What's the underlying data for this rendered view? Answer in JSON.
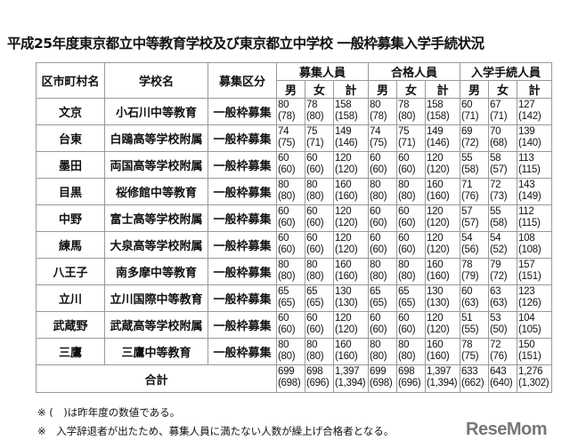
{
  "title": "平成25年度東京都立中等教育学校及び東京都立中学校 一般枠募集入学手続状況",
  "headers": {
    "district": "区市町村名",
    "school": "学校名",
    "category": "募集区分",
    "groups": [
      "募集人員",
      "合格人員",
      "入学手続人員"
    ],
    "sub": [
      "男",
      "女",
      "計"
    ]
  },
  "rows": [
    {
      "district": "文京",
      "school": "小石川中等教育",
      "category": "一般枠募集",
      "values": [
        [
          "80",
          "(78)"
        ],
        [
          "78",
          "(80)"
        ],
        [
          "158",
          "(158)"
        ],
        [
          "80",
          "(78)"
        ],
        [
          "78",
          "(80)"
        ],
        [
          "158",
          "(158)"
        ],
        [
          "60",
          "(71)"
        ],
        [
          "67",
          "(71)"
        ],
        [
          "127",
          "(142)"
        ]
      ]
    },
    {
      "district": "台東",
      "school": "白鴎高等学校附属",
      "category": "一般枠募集",
      "values": [
        [
          "74",
          "(75)"
        ],
        [
          "75",
          "(71)"
        ],
        [
          "149",
          "(146)"
        ],
        [
          "74",
          "(75)"
        ],
        [
          "75",
          "(71)"
        ],
        [
          "149",
          "(146)"
        ],
        [
          "69",
          "(72)"
        ],
        [
          "70",
          "(68)"
        ],
        [
          "139",
          "(140)"
        ]
      ]
    },
    {
      "district": "墨田",
      "school": "両国高等学校附属",
      "category": "一般枠募集",
      "values": [
        [
          "60",
          "(60)"
        ],
        [
          "60",
          "(60)"
        ],
        [
          "120",
          "(120)"
        ],
        [
          "60",
          "(60)"
        ],
        [
          "60",
          "(60)"
        ],
        [
          "120",
          "(120)"
        ],
        [
          "55",
          "(58)"
        ],
        [
          "58",
          "(57)"
        ],
        [
          "113",
          "(115)"
        ]
      ]
    },
    {
      "district": "目黒",
      "school": "桜修館中等教育",
      "category": "一般枠募集",
      "values": [
        [
          "80",
          "(80)"
        ],
        [
          "80",
          "(80)"
        ],
        [
          "160",
          "(160)"
        ],
        [
          "80",
          "(80)"
        ],
        [
          "80",
          "(80)"
        ],
        [
          "160",
          "(160)"
        ],
        [
          "71",
          "(76)"
        ],
        [
          "72",
          "(73)"
        ],
        [
          "143",
          "(149)"
        ]
      ]
    },
    {
      "district": "中野",
      "school": "富士高等学校附属",
      "category": "一般枠募集",
      "values": [
        [
          "60",
          "(60)"
        ],
        [
          "60",
          "(60)"
        ],
        [
          "120",
          "(120)"
        ],
        [
          "60",
          "(60)"
        ],
        [
          "60",
          "(60)"
        ],
        [
          "120",
          "(120)"
        ],
        [
          "57",
          "(57)"
        ],
        [
          "55",
          "(58)"
        ],
        [
          "112",
          "(115)"
        ]
      ]
    },
    {
      "district": "練馬",
      "school": "大泉高等学校附属",
      "category": "一般枠募集",
      "values": [
        [
          "60",
          "(60)"
        ],
        [
          "60",
          "(60)"
        ],
        [
          "120",
          "(120)"
        ],
        [
          "60",
          "(60)"
        ],
        [
          "60",
          "(60)"
        ],
        [
          "120",
          "(120)"
        ],
        [
          "54",
          "(56)"
        ],
        [
          "54",
          "(52)"
        ],
        [
          "108",
          "(108)"
        ]
      ]
    },
    {
      "district": "八王子",
      "school": "南多摩中等教育",
      "category": "一般枠募集",
      "values": [
        [
          "80",
          "(80)"
        ],
        [
          "80",
          "(80)"
        ],
        [
          "160",
          "(160)"
        ],
        [
          "80",
          "(80)"
        ],
        [
          "80",
          "(80)"
        ],
        [
          "160",
          "(160)"
        ],
        [
          "78",
          "(79)"
        ],
        [
          "79",
          "(72)"
        ],
        [
          "157",
          "(151)"
        ]
      ]
    },
    {
      "district": "立川",
      "school": "立川国際中等教育",
      "category": "一般枠募集",
      "values": [
        [
          "65",
          "(65)"
        ],
        [
          "65",
          "(65)"
        ],
        [
          "130",
          "(130)"
        ],
        [
          "65",
          "(65)"
        ],
        [
          "65",
          "(65)"
        ],
        [
          "130",
          "(130)"
        ],
        [
          "60",
          "(63)"
        ],
        [
          "63",
          "(63)"
        ],
        [
          "123",
          "(126)"
        ]
      ]
    },
    {
      "district": "武蔵野",
      "school": "武蔵高等学校附属",
      "category": "一般枠募集",
      "values": [
        [
          "60",
          "(60)"
        ],
        [
          "60",
          "(60)"
        ],
        [
          "120",
          "(120)"
        ],
        [
          "60",
          "(60)"
        ],
        [
          "60",
          "(60)"
        ],
        [
          "120",
          "(120)"
        ],
        [
          "51",
          "(55)"
        ],
        [
          "53",
          "(50)"
        ],
        [
          "104",
          "(105)"
        ]
      ]
    },
    {
      "district": "三鷹",
      "school": "三鷹中等教育",
      "category": "一般枠募集",
      "values": [
        [
          "80",
          "(80)"
        ],
        [
          "80",
          "(80)"
        ],
        [
          "160",
          "(160)"
        ],
        [
          "80",
          "(80)"
        ],
        [
          "80",
          "(80)"
        ],
        [
          "160",
          "(160)"
        ],
        [
          "78",
          "(75)"
        ],
        [
          "72",
          "(76)"
        ],
        [
          "150",
          "(151)"
        ]
      ]
    }
  ],
  "total": {
    "label": "合計",
    "values": [
      [
        "699",
        "(698)"
      ],
      [
        "698",
        "(696)"
      ],
      [
        "1,397",
        "(1,394)"
      ],
      [
        "699",
        "(698)"
      ],
      [
        "698",
        "(696)"
      ],
      [
        "1,397",
        "(1,394)"
      ],
      [
        "633",
        "(662)"
      ],
      [
        "643",
        "(640)"
      ],
      [
        "1,276",
        "(1,302)"
      ]
    ]
  },
  "notes": [
    "※ (　)は昨年度の数値である。",
    "※　入学辞退者が出たため、募集人員に満たない人数が繰上げ合格者となる。"
  ],
  "logo": "ReseMom"
}
